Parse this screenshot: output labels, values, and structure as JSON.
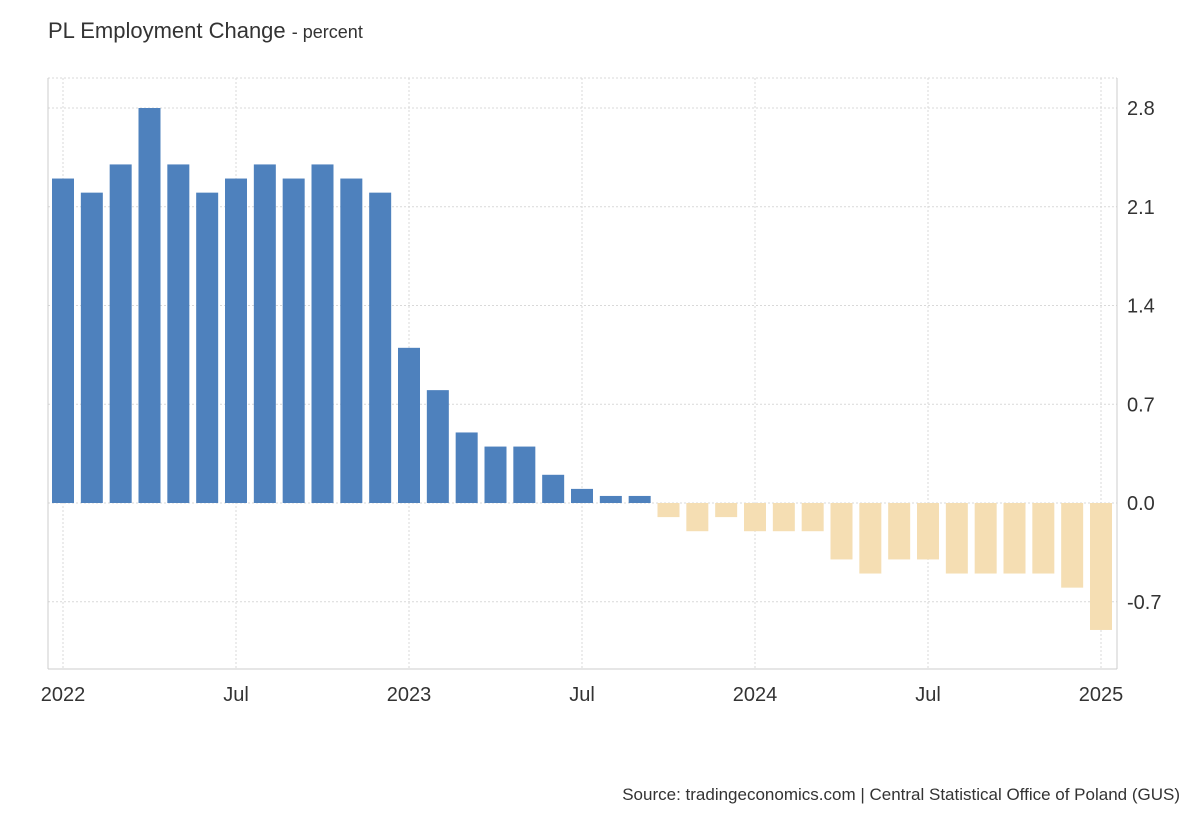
{
  "chart_data": {
    "type": "bar",
    "title": "PL Employment Change",
    "subtitle": "- percent",
    "xlabel": "",
    "ylabel": "percent",
    "source": "Source: tradingeconomics.com | Central Statistical Office of Poland (GUS)",
    "ylim": [
      -1.0,
      3.0
    ],
    "yticks": [
      2.8,
      2.1,
      1.4,
      0.7,
      0.0,
      -0.7
    ],
    "ytick_labels": [
      "2.8",
      "2.1",
      "1.4",
      "0.7",
      "0.0",
      "-0.7"
    ],
    "x_tick_labels": [
      {
        "label": "2022",
        "month_index": 0
      },
      {
        "label": "Jul",
        "month_index": 6
      },
      {
        "label": "2023",
        "month_index": 12
      },
      {
        "label": "Jul",
        "month_index": 18
      },
      {
        "label": "2024",
        "month_index": 24
      },
      {
        "label": "Jul",
        "month_index": 30
      },
      {
        "label": "2025",
        "month_index": 36
      }
    ],
    "categories": [
      "Jan 2022",
      "Feb 2022",
      "Mar 2022",
      "Apr 2022",
      "May 2022",
      "Jun 2022",
      "Jul 2022",
      "Aug 2022",
      "Sep 2022",
      "Oct 2022",
      "Nov 2022",
      "Dec 2022",
      "Jan 2023",
      "Feb 2023",
      "Mar 2023",
      "Apr 2023",
      "May 2023",
      "Jun 2023",
      "Jul 2023",
      "Aug 2023",
      "Sep 2023",
      "Oct 2023",
      "Nov 2023",
      "Dec 2023",
      "Jan 2024",
      "Feb 2024",
      "Mar 2024",
      "Apr 2024",
      "May 2024",
      "Jun 2024",
      "Jul 2024",
      "Aug 2024",
      "Sep 2024",
      "Oct 2024",
      "Nov 2024",
      "Dec 2024",
      "Jan 2025"
    ],
    "values": [
      2.3,
      2.2,
      2.4,
      2.8,
      2.4,
      2.2,
      2.3,
      2.4,
      2.3,
      2.4,
      2.3,
      2.2,
      1.1,
      0.8,
      0.5,
      0.4,
      0.4,
      0.2,
      0.1,
      0.05,
      0.05,
      -0.1,
      -0.2,
      -0.1,
      -0.2,
      -0.2,
      -0.2,
      -0.4,
      -0.5,
      -0.4,
      -0.4,
      -0.5,
      -0.5,
      -0.5,
      -0.5,
      -0.6,
      -0.9
    ],
    "colors": {
      "positive": "#4e81bd",
      "negative": "#f5deb3",
      "grid": "#d9d9d9",
      "axis": "#cccccc",
      "text": "#333333"
    }
  }
}
